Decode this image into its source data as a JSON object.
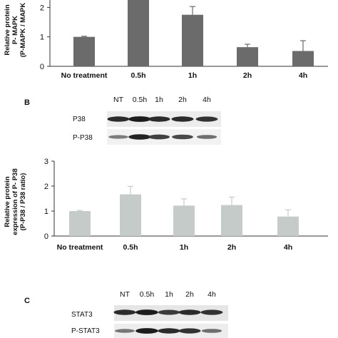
{
  "panels": {
    "B": "B",
    "C": "C"
  },
  "blot_b": {
    "lanes": [
      "NT",
      "0.5h",
      "1h",
      "2h",
      "4h"
    ],
    "rows": [
      "P38",
      "P-P38"
    ],
    "band_intensity": {
      "P38": [
        0.85,
        0.95,
        0.85,
        0.85,
        0.8
      ],
      "P-P38": [
        0.3,
        0.9,
        0.7,
        0.65,
        0.4
      ]
    }
  },
  "blot_c": {
    "lanes": [
      "NT",
      "0.5h",
      "1h",
      "2h",
      "4h"
    ],
    "rows": [
      "STAT3",
      "P-STAT3"
    ],
    "band_intensity": {
      "STAT3": [
        0.85,
        0.95,
        0.75,
        0.85,
        0.8
      ],
      "P-STAT3": [
        0.35,
        0.95,
        0.85,
        0.8,
        0.4
      ]
    }
  },
  "chart_data": [
    {
      "type": "bar",
      "categories": [
        "No treatment",
        "0.5h",
        "1h",
        "2h",
        "4h"
      ],
      "values": [
        1.0,
        2.4,
        1.75,
        0.65,
        0.52
      ],
      "errors": [
        0.02,
        0.3,
        0.28,
        0.1,
        0.35
      ],
      "ylabel_lines": [
        "Relative protein",
        "P- MAPK",
        "(P-MAPK / MAPK"
      ],
      "yticks": [
        0,
        1,
        2
      ],
      "ylim": [
        0,
        2.3
      ],
      "color": "#6b6b6b",
      "grid": false
    },
    {
      "type": "bar",
      "categories": [
        "No treatment",
        "0.5h",
        "1h",
        "2h",
        "4h"
      ],
      "values": [
        1.0,
        1.67,
        1.22,
        1.24,
        0.78
      ],
      "errors": [
        0.02,
        0.32,
        0.27,
        0.32,
        0.27
      ],
      "ylabel_lines": [
        "Relative protein",
        "expression of P- P38",
        "(P-P38 / P38 ratio)"
      ],
      "yticks": [
        0,
        1,
        2,
        3
      ],
      "ylim": [
        0,
        3
      ],
      "color": "#c4cbc8",
      "grid": false
    }
  ]
}
